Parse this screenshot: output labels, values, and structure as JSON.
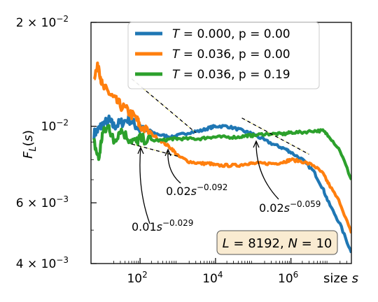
{
  "chart_data": {
    "type": "line",
    "xlabel": "size s",
    "ylabel": "F_L(s)",
    "xscale": "log",
    "yscale": "log",
    "xlim": [
      5,
      40000000.0
    ],
    "ylim": [
      0.004,
      0.02
    ],
    "x_ticks": [
      {
        "value": 100,
        "base": "10",
        "exp": "2"
      },
      {
        "value": 10000,
        "base": "10",
        "exp": "4"
      },
      {
        "value": 1000000,
        "base": "10",
        "exp": "6"
      }
    ],
    "y_ticks": [
      {
        "value": 0.02,
        "mant": "2 × 10",
        "exp": "−2"
      },
      {
        "value": 0.01,
        "mant": "10",
        "exp": "−2"
      },
      {
        "value": 0.006,
        "mant": "6 × 10",
        "exp": "−3"
      },
      {
        "value": 0.004,
        "mant": "4 × 10",
        "exp": "−3"
      }
    ],
    "legend_position": "top-right",
    "grid": false,
    "series": [
      {
        "name": "T = 0.000, p = 0.00",
        "color": "#1f77b4",
        "x": [
          6,
          8,
          10,
          15,
          20,
          30,
          50,
          80,
          100,
          200,
          400,
          700,
          1000,
          2000,
          4000,
          7000,
          10000,
          20000,
          40000,
          70000,
          100000,
          200000,
          400000,
          700000,
          1000000,
          2000000,
          4000000,
          7000000,
          10000000,
          20000000,
          40000000
        ],
        "y": [
          0.0095,
          0.0098,
          0.0101,
          0.0104,
          0.01,
          0.0102,
          0.0105,
          0.01,
          0.0098,
          0.0096,
          0.0094,
          0.0093,
          0.0094,
          0.0096,
          0.0097,
          0.0099,
          0.01,
          0.01,
          0.0098,
          0.0096,
          0.0095,
          0.0091,
          0.0088,
          0.0086,
          0.0084,
          0.008,
          0.0074,
          0.0066,
          0.006,
          0.0052,
          0.0043
        ]
      },
      {
        "name": "T = 0.036, p = 0.00",
        "color": "#ff7f0e",
        "x": [
          6,
          8,
          10,
          15,
          20,
          30,
          50,
          80,
          100,
          200,
          400,
          700,
          1000,
          2000,
          4000,
          7000,
          10000,
          20000,
          40000,
          70000,
          100000,
          200000,
          400000,
          700000,
          1000000,
          2000000,
          4000000,
          7000000,
          10000000,
          20000000,
          40000000
        ],
        "y": [
          0.014,
          0.015,
          0.013,
          0.0125,
          0.012,
          0.0115,
          0.011,
          0.0105,
          0.01,
          0.0095,
          0.009,
          0.0086,
          0.0082,
          0.0079,
          0.0078,
          0.0078,
          0.0077,
          0.0077,
          0.0077,
          0.0078,
          0.0078,
          0.0078,
          0.0078,
          0.0079,
          0.008,
          0.0079,
          0.0077,
          0.0073,
          0.0068,
          0.006,
          0.0049
        ]
      },
      {
        "name": "T = 0.036, p = 0.19",
        "color": "#2ca02c",
        "x": [
          6,
          8,
          10,
          15,
          20,
          30,
          50,
          80,
          100,
          200,
          400,
          700,
          1000,
          2000,
          4000,
          7000,
          10000,
          20000,
          40000,
          70000,
          100000,
          200000,
          400000,
          700000,
          1000000,
          2000000,
          4000000,
          7000000,
          10000000,
          20000000,
          40000000
        ],
        "y": [
          0.009,
          0.008,
          0.0095,
          0.01,
          0.009,
          0.0098,
          0.0092,
          0.009,
          0.0092,
          0.0091,
          0.0091,
          0.0092,
          0.0092,
          0.0092,
          0.0092,
          0.0093,
          0.0093,
          0.0093,
          0.0093,
          0.0094,
          0.0094,
          0.0095,
          0.0095,
          0.0095,
          0.0096,
          0.0096,
          0.0097,
          0.0097,
          0.0094,
          0.0085,
          0.007
        ]
      }
    ],
    "fits": [
      {
        "coef": "0.01",
        "exponent": "−0.029",
        "a": 0.01,
        "b": -0.029,
        "x_range": [
          60,
          1000
        ]
      },
      {
        "coef": "0.02",
        "exponent": "−0.092",
        "a": 0.02,
        "b": -0.092,
        "x_range": [
          60,
          3000
        ]
      },
      {
        "coef": "0.02",
        "exponent": "−0.059",
        "a": 0.02,
        "b": -0.059,
        "x_range": [
          50000,
          3000000
        ]
      }
    ],
    "info_box": "L = 8192, N = 10"
  }
}
